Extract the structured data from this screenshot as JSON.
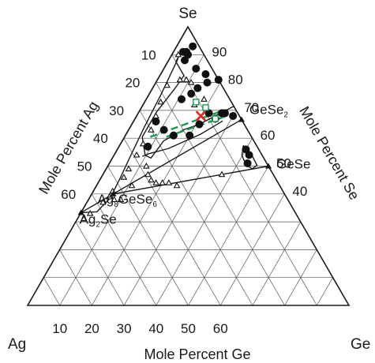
{
  "chart_data": {
    "type": "scatter",
    "subtype": "ternary",
    "vertex_labels": {
      "top": "Se",
      "left": "Ag",
      "right": "Ge"
    },
    "axis_labels": {
      "bottom": "Mole Percent Ge",
      "left": "Mole Percent Ag",
      "right": "Mole Percent Se"
    },
    "ticks": {
      "ge": [
        "10",
        "20",
        "30",
        "40",
        "50",
        "60"
      ],
      "ag": [
        "10",
        "20",
        "30",
        "40",
        "50",
        "60"
      ],
      "se": [
        "90",
        "80",
        "70",
        "60",
        "50",
        "40"
      ]
    },
    "ticks_pct": {
      "ge": [
        10,
        20,
        30,
        40,
        50,
        60
      ],
      "ag": [
        10,
        20,
        30,
        40,
        50,
        60
      ],
      "se": [
        90,
        80,
        70,
        60,
        50,
        40
      ]
    },
    "grid_step_pct": 10,
    "compounds": [
      {
        "label": "GeSe",
        "sub": "2",
        "ge": 33.3,
        "ag": 0,
        "se": 66.7
      },
      {
        "label": "GeSe",
        "sub": "",
        "ge": 50,
        "ag": 0,
        "se": 50
      },
      {
        "label_parts": [
          "Ag",
          "8",
          "GeSe",
          "6"
        ],
        "ge": 6.7,
        "ag": 53.3,
        "se": 40
      },
      {
        "label_parts": [
          "Ag",
          "2",
          "Se"
        ],
        "ge": 0,
        "ag": 66.7,
        "se": 33.3
      }
    ],
    "series": [
      {
        "marker": "triangle",
        "points": [
          {
            "ge": 2,
            "ag": 8,
            "se": 90
          },
          {
            "ge": 4,
            "ag": 17,
            "se": 79
          },
          {
            "ge": 5,
            "ag": 22,
            "se": 73
          },
          {
            "ge": 6,
            "ag": 26,
            "se": 68
          },
          {
            "ge": 7,
            "ag": 30,
            "se": 63
          },
          {
            "ge": 7,
            "ag": 35,
            "se": 58
          },
          {
            "ge": 7,
            "ag": 39,
            "se": 54
          },
          {
            "ge": 7,
            "ag": 44,
            "se": 49
          },
          {
            "ge": 7,
            "ag": 47,
            "se": 46
          },
          {
            "ge": 6,
            "ag": 53,
            "se": 41
          },
          {
            "ge": 6,
            "ag": 55,
            "se": 39
          },
          {
            "ge": 5,
            "ag": 58,
            "se": 37
          },
          {
            "ge": 7,
            "ag": 12,
            "se": 81
          },
          {
            "ge": 9,
            "ag": 10,
            "se": 81
          },
          {
            "ge": 11,
            "ag": 9,
            "se": 80
          },
          {
            "ge": 16,
            "ag": 12,
            "se": 72
          },
          {
            "ge": 18,
            "ag": 8,
            "se": 74
          },
          {
            "ge": 12,
            "ag": 38,
            "se": 50
          },
          {
            "ge": 14,
            "ag": 39,
            "se": 47
          },
          {
            "ge": 16,
            "ag": 39,
            "se": 45
          },
          {
            "ge": 18,
            "ag": 38,
            "se": 44
          },
          {
            "ge": 20,
            "ag": 36,
            "se": 44
          },
          {
            "ge": 22,
            "ag": 34,
            "se": 44
          },
          {
            "ge": 25,
            "ag": 32,
            "se": 43
          },
          {
            "ge": 11,
            "ag": 46,
            "se": 43
          },
          {
            "ge": 10,
            "ag": 52,
            "se": 38
          },
          {
            "ge": 8,
            "ag": 54,
            "se": 38
          },
          {
            "ge": 3,
            "ag": 64,
            "se": 33
          },
          {
            "ge": 2,
            "ag": 67,
            "se": 31
          },
          {
            "ge": 37,
            "ag": 16,
            "se": 47
          }
        ]
      },
      {
        "marker": "circle",
        "points": [
          {
            "ge": 5,
            "ag": 2,
            "se": 93
          },
          {
            "ge": 4,
            "ag": 5,
            "se": 91
          },
          {
            "ge": 3,
            "ag": 6,
            "se": 91
          },
          {
            "ge": 5,
            "ag": 5,
            "se": 90
          },
          {
            "ge": 5,
            "ag": 7,
            "se": 88
          },
          {
            "ge": 10,
            "ag": 5,
            "se": 85
          },
          {
            "ge": 14,
            "ag": 3,
            "se": 83
          },
          {
            "ge": 19,
            "ag": 0,
            "se": 81
          },
          {
            "ge": 16,
            "ag": 4,
            "se": 80
          },
          {
            "ge": 14,
            "ag": 8,
            "se": 78
          },
          {
            "ge": 13,
            "ag": 11,
            "se": 76
          },
          {
            "ge": 11,
            "ag": 15,
            "se": 74
          },
          {
            "ge": 7,
            "ag": 27,
            "se": 66
          },
          {
            "ge": 11,
            "ag": 26,
            "se": 63
          },
          {
            "ge": 15,
            "ag": 24,
            "se": 61
          },
          {
            "ge": 20,
            "ag": 19,
            "se": 61
          },
          {
            "ge": 21,
            "ag": 14,
            "se": 65
          },
          {
            "ge": 26,
            "ag": 5,
            "se": 69
          },
          {
            "ge": 22,
            "ag": 9,
            "se": 69
          },
          {
            "ge": 25,
            "ag": 8,
            "se": 67
          },
          {
            "ge": 30,
            "ag": 2,
            "se": 68
          },
          {
            "ge": 27,
            "ag": 4,
            "se": 69
          },
          {
            "ge": 9,
            "ag": 34,
            "se": 57
          },
          {
            "ge": 40,
            "ag": 4,
            "se": 56
          },
          {
            "ge": 42,
            "ag": 4,
            "se": 54
          },
          {
            "ge": 43,
            "ag": 6,
            "se": 51
          }
        ]
      },
      {
        "marker": "open-square",
        "points": [
          {
            "ge": 16,
            "ag": 11,
            "se": 73
          },
          {
            "ge": 25,
            "ag": 8,
            "se": 67
          },
          {
            "ge": 20,
            "ag": 9,
            "se": 71
          }
        ]
      },
      {
        "marker": "x",
        "points": [
          {
            "ge": 20,
            "ag": 12,
            "se": 68
          }
        ]
      }
    ],
    "boundaries": [
      [
        [
          0,
          0,
          100
        ],
        [
          0,
          66.7,
          33.3
        ]
      ],
      [
        [
          33.3,
          0,
          66.7
        ],
        [
          0,
          66.7,
          33.3
        ]
      ],
      [
        [
          6.7,
          53.3,
          40
        ],
        [
          50,
          0,
          50
        ]
      ],
      [
        [
          2.6,
          8.7,
          88.7
        ],
        [
          3.7,
          20,
          76.3
        ],
        [
          4.4,
          31.6,
          64
        ],
        [
          5.3,
          41.5,
          53.2
        ],
        [
          6,
          48.1,
          45.9
        ],
        [
          6.5,
          55,
          38.5
        ],
        [
          4.8,
          61.6,
          33.6
        ],
        [
          0,
          66.7,
          33.3
        ]
      ],
      [
        [
          2.4,
          5.8,
          91.8
        ],
        [
          2.5,
          10,
          87.5
        ],
        [
          7.5,
          10,
          82.5
        ],
        [
          7,
          15.2,
          77.8
        ],
        [
          5.5,
          25,
          69.5
        ],
        [
          5.5,
          34,
          60.5
        ],
        [
          9.7,
          36.4,
          53.9
        ],
        [
          12,
          35.1,
          52.9
        ],
        [
          12.9,
          28,
          59.1
        ],
        [
          17,
          20,
          63
        ],
        [
          21,
          14,
          65
        ],
        [
          28.5,
          0,
          71.5
        ]
      ],
      [
        [
          27.7,
          6.1,
          66.2
        ],
        [
          23.1,
          15.5,
          61.4
        ],
        [
          15.7,
          28,
          56.3
        ],
        [
          10.5,
          35.1,
          54.4
        ],
        [
          9,
          37.5,
          53.5
        ]
      ],
      [
        [
          38.5,
          4.1,
          57.4
        ],
        [
          43.2,
          3.2,
          53.6
        ],
        [
          46.3,
          3.4,
          50.3
        ],
        [
          45.4,
          5.6,
          49
        ],
        [
          42.6,
          6.7,
          50.7
        ],
        [
          39.8,
          6.3,
          53.9
        ],
        [
          38.5,
          4.1,
          57.4
        ]
      ]
    ],
    "tie_lines": [
      [
        [
          8,
          31.5,
          60.5
        ],
        [
          26,
          4,
          70
        ]
      ],
      [
        [
          13,
          26.5,
          60.5
        ],
        [
          28,
          4,
          68
        ]
      ]
    ],
    "grid": true
  }
}
